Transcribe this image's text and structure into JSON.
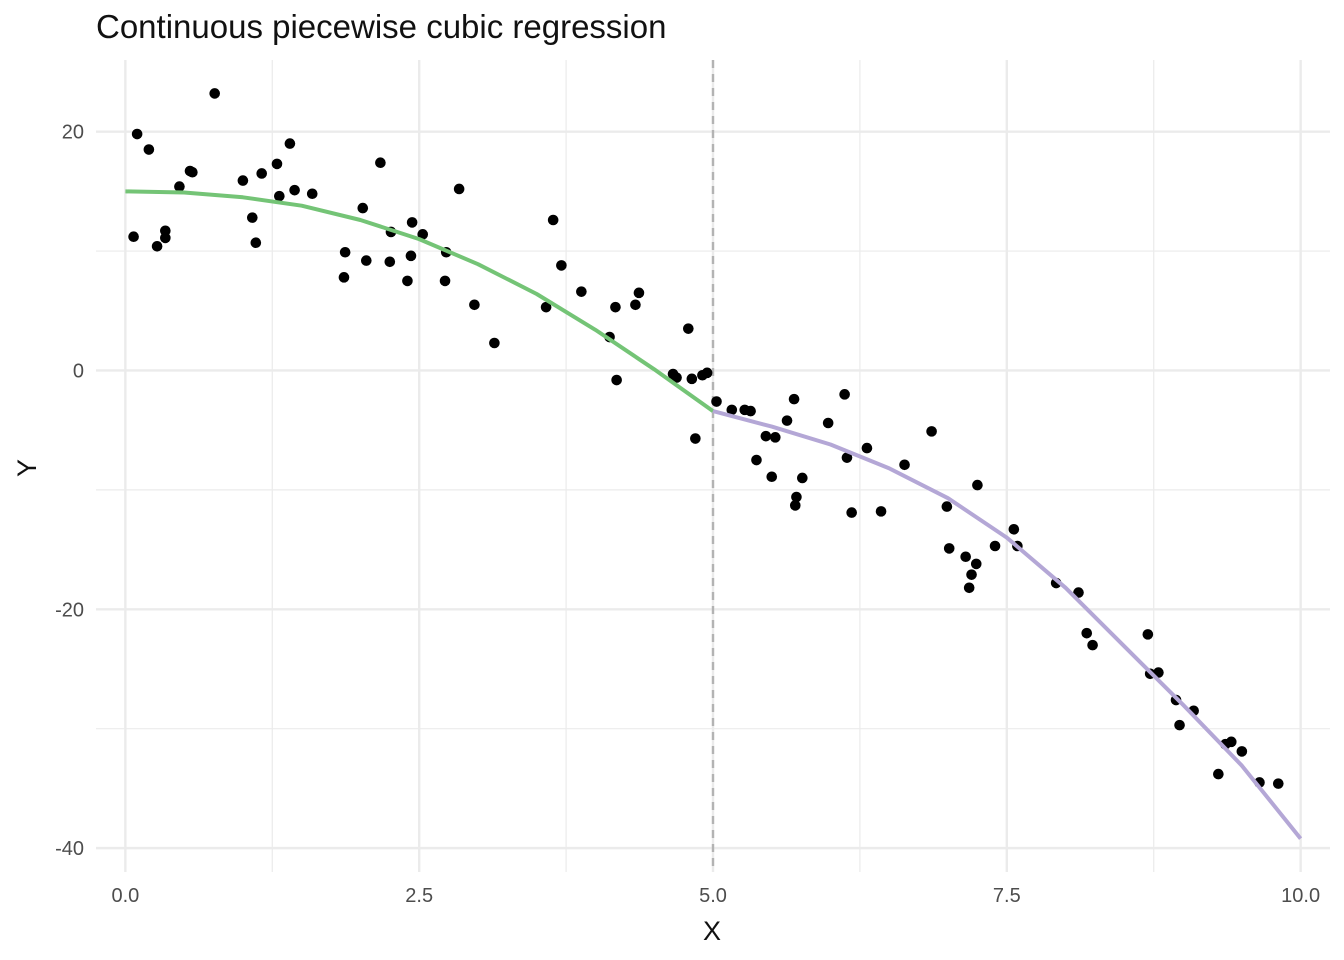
{
  "chart_data": {
    "type": "scatter",
    "title": "Continuous piecewise cubic regression",
    "xlabel": "X",
    "ylabel": "Y",
    "xlim": [
      -0.25,
      10.25
    ],
    "ylim": [
      -42,
      26
    ],
    "x_ticks": [
      0.0,
      2.5,
      5.0,
      7.5,
      10.0
    ],
    "x_tick_labels": [
      "0.0",
      "2.5",
      "5.0",
      "7.5",
      "10.0"
    ],
    "y_ticks": [
      20,
      0,
      -20,
      -40
    ],
    "y_tick_labels": [
      "20",
      "0",
      "-20",
      "-40"
    ],
    "grid": true,
    "knot": 5.0,
    "colors": {
      "points": "#000000",
      "segment_left": "#74c476",
      "segment_right": "#b4a7d6",
      "knot_line": "#b3b3b3",
      "grid": "#ebebeb"
    },
    "points": [
      [
        0.07,
        11.2
      ],
      [
        0.1,
        19.8
      ],
      [
        0.2,
        18.5
      ],
      [
        0.27,
        10.4
      ],
      [
        0.34,
        11.7
      ],
      [
        0.34,
        11.1
      ],
      [
        0.46,
        15.4
      ],
      [
        0.55,
        16.7
      ],
      [
        0.57,
        16.6
      ],
      [
        0.76,
        23.2
      ],
      [
        1.0,
        15.9
      ],
      [
        1.08,
        12.8
      ],
      [
        1.11,
        10.7
      ],
      [
        1.16,
        16.5
      ],
      [
        1.29,
        17.3
      ],
      [
        1.31,
        14.6
      ],
      [
        1.4,
        19.0
      ],
      [
        1.44,
        15.1
      ],
      [
        1.59,
        14.8
      ],
      [
        1.86,
        7.8
      ],
      [
        1.87,
        9.9
      ],
      [
        2.02,
        13.6
      ],
      [
        2.05,
        9.2
      ],
      [
        2.17,
        17.4
      ],
      [
        2.25,
        9.1
      ],
      [
        2.26,
        11.6
      ],
      [
        2.4,
        7.5
      ],
      [
        2.43,
        9.6
      ],
      [
        2.44,
        12.4
      ],
      [
        2.53,
        11.4
      ],
      [
        2.72,
        7.5
      ],
      [
        2.73,
        9.9
      ],
      [
        2.84,
        15.2
      ],
      [
        2.97,
        5.5
      ],
      [
        3.14,
        2.3
      ],
      [
        3.58,
        5.3
      ],
      [
        3.64,
        12.6
      ],
      [
        3.71,
        8.8
      ],
      [
        3.88,
        6.6
      ],
      [
        4.12,
        2.8
      ],
      [
        4.17,
        5.3
      ],
      [
        4.18,
        -0.8
      ],
      [
        4.34,
        5.5
      ],
      [
        4.37,
        6.5
      ],
      [
        4.66,
        -0.3
      ],
      [
        4.69,
        -0.6
      ],
      [
        4.79,
        3.5
      ],
      [
        4.82,
        -0.7
      ],
      [
        4.85,
        -5.7
      ],
      [
        4.91,
        -0.4
      ],
      [
        4.95,
        -0.2
      ],
      [
        5.03,
        -2.6
      ],
      [
        5.16,
        -3.3
      ],
      [
        5.27,
        -3.3
      ],
      [
        5.32,
        -3.4
      ],
      [
        5.37,
        -7.5
      ],
      [
        5.45,
        -5.5
      ],
      [
        5.5,
        -8.9
      ],
      [
        5.53,
        -5.6
      ],
      [
        5.63,
        -4.2
      ],
      [
        5.69,
        -2.4
      ],
      [
        5.7,
        -11.3
      ],
      [
        5.71,
        -10.6
      ],
      [
        5.76,
        -9.0
      ],
      [
        5.98,
        -4.4
      ],
      [
        6.12,
        -2.0
      ],
      [
        6.14,
        -7.3
      ],
      [
        6.18,
        -11.9
      ],
      [
        6.31,
        -6.5
      ],
      [
        6.43,
        -11.8
      ],
      [
        6.63,
        -7.9
      ],
      [
        6.86,
        -5.1
      ],
      [
        6.99,
        -11.4
      ],
      [
        7.01,
        -14.9
      ],
      [
        7.15,
        -15.6
      ],
      [
        7.18,
        -18.2
      ],
      [
        7.2,
        -17.1
      ],
      [
        7.24,
        -16.2
      ],
      [
        7.25,
        -9.6
      ],
      [
        7.4,
        -14.7
      ],
      [
        7.56,
        -13.3
      ],
      [
        7.59,
        -14.7
      ],
      [
        7.92,
        -17.8
      ],
      [
        8.11,
        -18.6
      ],
      [
        8.18,
        -22.0
      ],
      [
        8.23,
        -23.0
      ],
      [
        8.7,
        -22.1
      ],
      [
        8.72,
        -25.4
      ],
      [
        8.79,
        -25.3
      ],
      [
        8.94,
        -27.6
      ],
      [
        8.97,
        -29.7
      ],
      [
        9.09,
        -28.5
      ],
      [
        9.3,
        -33.8
      ],
      [
        9.36,
        -31.3
      ],
      [
        9.41,
        -31.1
      ],
      [
        9.5,
        -31.9
      ],
      [
        9.65,
        -34.5
      ],
      [
        9.81,
        -34.6
      ]
    ],
    "fit_left": {
      "knot_x": [
        0.0,
        0.5,
        1.0,
        1.5,
        2.0,
        2.5,
        3.0,
        3.5,
        4.0,
        4.5,
        5.0
      ],
      "y": [
        15.0,
        14.9,
        14.5,
        13.8,
        12.6,
        11.0,
        8.9,
        6.4,
        3.4,
        0.1,
        -3.4
      ]
    },
    "fit_right": {
      "knot_x": [
        5.0,
        5.5,
        6.0,
        6.5,
        7.0,
        7.5,
        8.0,
        8.5,
        9.0,
        9.5,
        10.0
      ],
      "y": [
        -3.4,
        -4.7,
        -6.2,
        -8.2,
        -10.7,
        -14.0,
        -18.2,
        -23.1,
        -28.0,
        -33.1,
        -39.2
      ]
    }
  }
}
